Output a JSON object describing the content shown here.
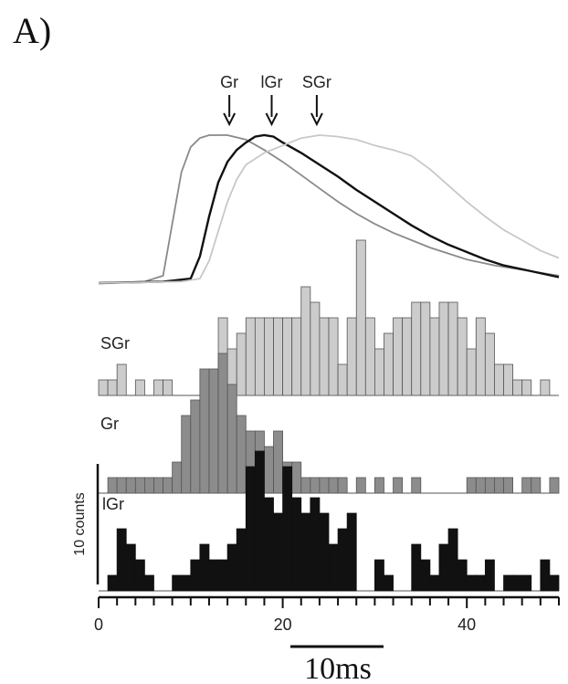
{
  "panel_label": "A)",
  "scale_bar_label": "10ms",
  "y_scale_label": "10 counts",
  "chart_data": {
    "type": "bar",
    "xlim": [
      0,
      50
    ],
    "xticks": [
      0,
      20,
      40
    ],
    "xtick_labels": [
      "0",
      "20",
      "40"
    ],
    "arrows": [
      {
        "label": "Gr",
        "x": 14.2
      },
      {
        "label": "lGr",
        "x": 18.8
      },
      {
        "label": "SGr",
        "x": 23.7
      }
    ],
    "traces": [
      {
        "name": "Gr",
        "color": "#8a8a8a",
        "points": [
          [
            0,
            0
          ],
          [
            5,
            0.01
          ],
          [
            7,
            0.05
          ],
          [
            8,
            0.4
          ],
          [
            9,
            0.75
          ],
          [
            10,
            0.92
          ],
          [
            11,
            0.98
          ],
          [
            12,
            1.0
          ],
          [
            14,
            1.0
          ],
          [
            16,
            0.97
          ],
          [
            18,
            0.9
          ],
          [
            20,
            0.82
          ],
          [
            22,
            0.73
          ],
          [
            24,
            0.64
          ],
          [
            26,
            0.55
          ],
          [
            28,
            0.47
          ],
          [
            30,
            0.4
          ],
          [
            32,
            0.34
          ],
          [
            34,
            0.29
          ],
          [
            36,
            0.24
          ],
          [
            38,
            0.2
          ],
          [
            40,
            0.16
          ],
          [
            43,
            0.12
          ],
          [
            46,
            0.09
          ],
          [
            50,
            0.05
          ]
        ]
      },
      {
        "name": "lGr",
        "color": "#111111",
        "points": [
          [
            0,
            0
          ],
          [
            7,
            0.01
          ],
          [
            10,
            0.03
          ],
          [
            11,
            0.18
          ],
          [
            12,
            0.45
          ],
          [
            13,
            0.68
          ],
          [
            14,
            0.82
          ],
          [
            15,
            0.9
          ],
          [
            16,
            0.95
          ],
          [
            17,
            0.99
          ],
          [
            18,
            1.0
          ],
          [
            19,
            0.99
          ],
          [
            20,
            0.95
          ],
          [
            22,
            0.88
          ],
          [
            24,
            0.8
          ],
          [
            26,
            0.72
          ],
          [
            28,
            0.63
          ],
          [
            30,
            0.55
          ],
          [
            32,
            0.47
          ],
          [
            34,
            0.39
          ],
          [
            36,
            0.32
          ],
          [
            38,
            0.26
          ],
          [
            40,
            0.21
          ],
          [
            42,
            0.16
          ],
          [
            44,
            0.12
          ],
          [
            47,
            0.08
          ],
          [
            50,
            0.04
          ]
        ]
      },
      {
        "name": "SGr",
        "color": "#c8c8c8",
        "points": [
          [
            0,
            0
          ],
          [
            9,
            0.01
          ],
          [
            11,
            0.03
          ],
          [
            12,
            0.15
          ],
          [
            13,
            0.35
          ],
          [
            14,
            0.55
          ],
          [
            15,
            0.7
          ],
          [
            16,
            0.8
          ],
          [
            18,
            0.88
          ],
          [
            20,
            0.93
          ],
          [
            22,
            0.98
          ],
          [
            24,
            1.0
          ],
          [
            26,
            0.99
          ],
          [
            28,
            0.97
          ],
          [
            30,
            0.93
          ],
          [
            32,
            0.9
          ],
          [
            34,
            0.86
          ],
          [
            36,
            0.77
          ],
          [
            38,
            0.66
          ],
          [
            40,
            0.55
          ],
          [
            42,
            0.45
          ],
          [
            44,
            0.36
          ],
          [
            46,
            0.29
          ],
          [
            48,
            0.22
          ],
          [
            50,
            0.17
          ]
        ]
      }
    ],
    "histograms": [
      {
        "name": "SGr",
        "color": "#cccccc",
        "label": "SGr",
        "counts": [
          1,
          1,
          2,
          0,
          1,
          0,
          1,
          1,
          0,
          0,
          0,
          0,
          0,
          5,
          3,
          4,
          5,
          5,
          5,
          5,
          5,
          5,
          7,
          6,
          5,
          5,
          2,
          5,
          10,
          5,
          3,
          4,
          5,
          5,
          6,
          6,
          5,
          6,
          6,
          5,
          3,
          5,
          4,
          2,
          2,
          1,
          1,
          0,
          1,
          0
        ]
      },
      {
        "name": "Gr",
        "color": "#8c8c8c",
        "label": "Gr",
        "counts": [
          0,
          1,
          1,
          1,
          1,
          1,
          1,
          1,
          2,
          5,
          6,
          8,
          8,
          9,
          7,
          5,
          4,
          4,
          3,
          4,
          2,
          2,
          1,
          1,
          1,
          1,
          1,
          0,
          1,
          0,
          1,
          0,
          1,
          0,
          1,
          0,
          0,
          0,
          0,
          0,
          1,
          1,
          1,
          1,
          1,
          0,
          1,
          1,
          0,
          1
        ]
      },
      {
        "name": "lGr",
        "color": "#111111",
        "label": "lGr",
        "counts": [
          0,
          1,
          4,
          3,
          2,
          1,
          0,
          0,
          1,
          1,
          2,
          3,
          2,
          2,
          3,
          4,
          8,
          9,
          6,
          5,
          8,
          6,
          5,
          6,
          5,
          3,
          4,
          5,
          0,
          0,
          2,
          1,
          0,
          0,
          3,
          2,
          1,
          3,
          4,
          2,
          1,
          1,
          2,
          0,
          1,
          1,
          1,
          0,
          2,
          1
        ]
      }
    ]
  }
}
